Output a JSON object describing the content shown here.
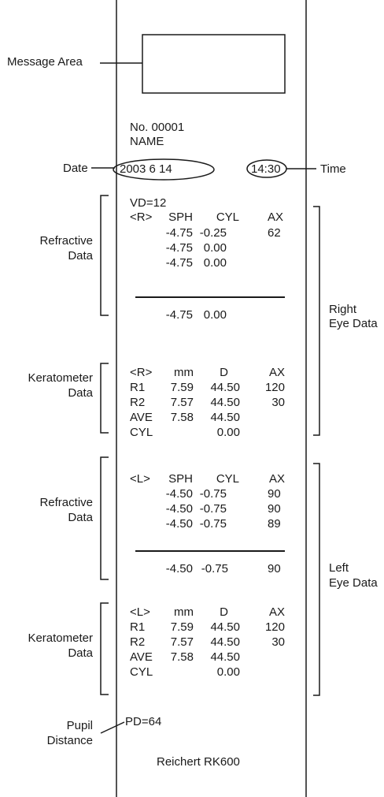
{
  "labels": {
    "message_area": "Message Area",
    "date": "Date",
    "time": "Time",
    "refractive_r": [
      "Refractive",
      "Data"
    ],
    "keratometer_r": [
      "Keratometer",
      "Data"
    ],
    "right_eye": [
      "Right",
      "Eye Data"
    ],
    "refractive_l": [
      "Refractive",
      "Data"
    ],
    "keratometer_l": [
      "Keratometer",
      "Data"
    ],
    "left_eye": [
      "Left",
      "Eye Data"
    ],
    "pupil": [
      "Pupil",
      "Distance"
    ]
  },
  "printout": {
    "number": "No.  00001",
    "name": "NAME",
    "date_value": "2003  6  14",
    "time_value": "14:30",
    "vd": "VD=12",
    "right_refraction": {
      "header": [
        "<R>",
        "SPH",
        "CYL",
        "AX"
      ],
      "rows": [
        [
          "-4.75",
          "-0.25",
          "62"
        ],
        [
          "-4.75",
          "0.00",
          ""
        ],
        [
          "-4.75",
          "0.00",
          ""
        ]
      ],
      "result": [
        "-4.75",
        "0.00",
        ""
      ]
    },
    "right_kerato": {
      "header": [
        "<R>",
        "mm",
        "D",
        "AX"
      ],
      "rows": [
        [
          "R1",
          "7.59",
          "44.50",
          "120"
        ],
        [
          "R2",
          "7.57",
          "44.50",
          "30"
        ],
        [
          "AVE",
          "7.58",
          "44.50",
          ""
        ],
        [
          "CYL",
          "",
          "0.00",
          ""
        ]
      ]
    },
    "left_refraction": {
      "header": [
        "<L>",
        "SPH",
        "CYL",
        "AX"
      ],
      "rows": [
        [
          "-4.50",
          "-0.75",
          "90"
        ],
        [
          "-4.50",
          "-0.75",
          "90"
        ],
        [
          "-4.50",
          "-0.75",
          "89"
        ]
      ],
      "result": [
        "-4.50",
        "-0.75",
        "90"
      ]
    },
    "left_kerato": {
      "header": [
        "<L>",
        "mm",
        "D",
        "AX"
      ],
      "rows": [
        [
          "R1",
          "7.59",
          "44.50",
          "120"
        ],
        [
          "R2",
          "7.57",
          "44.50",
          "30"
        ],
        [
          "AVE",
          "7.58",
          "44.50",
          ""
        ],
        [
          "CYL",
          "",
          "0.00",
          ""
        ]
      ]
    },
    "pd": "PD=64",
    "footer": "Reichert   RK600"
  }
}
